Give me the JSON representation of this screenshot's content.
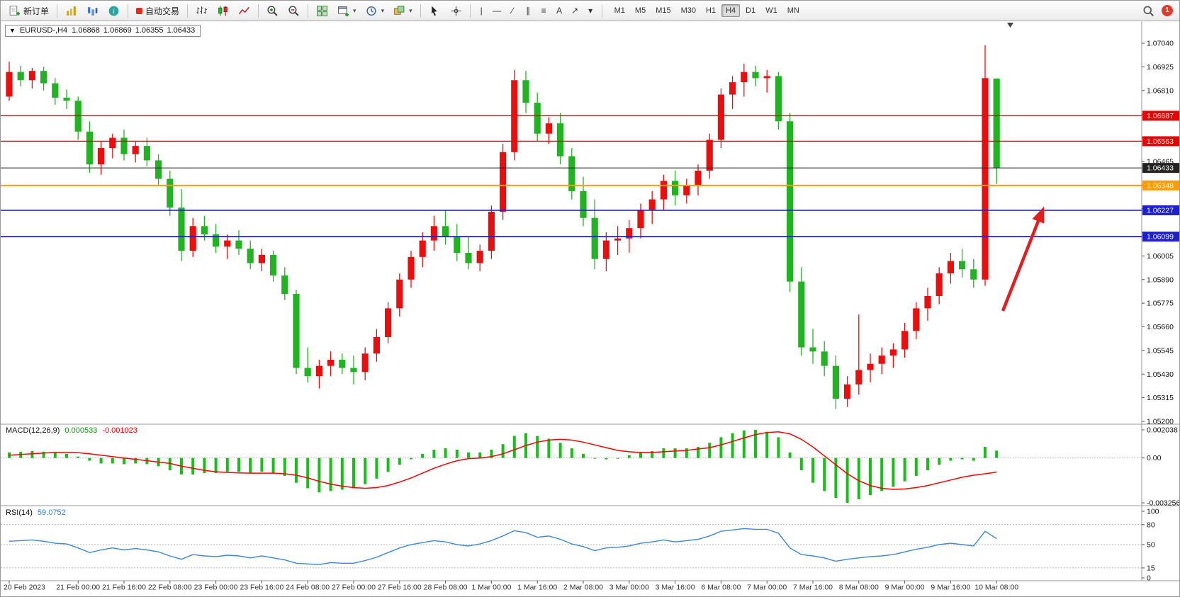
{
  "toolbar": {
    "new_order": "新订单",
    "auto_trading": "自动交易",
    "notification_count": "1",
    "icon_names": [
      "new-order-icon",
      "market-watch-icon",
      "navigator-icon",
      "terminal-icon",
      "auto-trading-icon",
      "bar-chart-icon",
      "candlestick-chart-icon",
      "line-chart-icon",
      "zoom-in-icon",
      "zoom-out-icon",
      "tile-windows-icon",
      "new-chart-icon",
      "periods-icon",
      "templates-icon",
      "cursor-icon",
      "crosshair-icon",
      "search-icon"
    ],
    "drawing_tools": [
      {
        "name": "vertical-line",
        "glyph": "|"
      },
      {
        "name": "horizontal-line",
        "glyph": "―"
      },
      {
        "name": "trendline",
        "glyph": "∕"
      },
      {
        "name": "equidistant-channel",
        "glyph": "∥"
      },
      {
        "name": "fibonacci-retracement",
        "glyph": "≡"
      },
      {
        "name": "text-label",
        "glyph": "A"
      },
      {
        "name": "arrow-tool",
        "glyph": "↗"
      },
      {
        "name": "shapes-dropdown",
        "glyph": "▾"
      }
    ],
    "timeframes": [
      {
        "label": "M1",
        "active": false
      },
      {
        "label": "M5",
        "active": false
      },
      {
        "label": "M15",
        "active": false
      },
      {
        "label": "M30",
        "active": false
      },
      {
        "label": "H1",
        "active": false
      },
      {
        "label": "H4",
        "active": true
      },
      {
        "label": "D1",
        "active": false
      },
      {
        "label": "W1",
        "active": false
      },
      {
        "label": "MN",
        "active": false
      }
    ]
  },
  "chart": {
    "one_click_arrow": "▼",
    "symbol_period": "EURUSD-,H4",
    "ohlc": {
      "open": "1.06868",
      "high": "1.06869",
      "low": "1.06355",
      "close": "1.06433"
    }
  },
  "indicators": {
    "macd": {
      "name": "MACD(12,26,9)",
      "main": "0.000533",
      "signal": "-0.001023",
      "scale": [
        "0.002038",
        "0.00",
        "-0.003256"
      ]
    },
    "rsi": {
      "name": "RSI(14)",
      "value": "59.0752",
      "scale": [
        "100",
        "80",
        "50",
        "15",
        "0"
      ]
    }
  },
  "annotations": {
    "arrow_color": "#e02020"
  },
  "chart_data": {
    "type": "candlestick",
    "symbol": "EURUSD-",
    "timeframe": "H4",
    "colors": {
      "bull": "#ea0f0f",
      "bear": "#22b322",
      "macd_hist": "#19bf19",
      "macd_signal": "#ff0000",
      "rsi": "#3a87e0"
    },
    "price_axis": {
      "max": 1.0704,
      "min": 1.052,
      "step": 0.00115,
      "labels": [
        "1.07040",
        "1.06925",
        "1.06810",
        "1.06695",
        "1.06580",
        "1.06465",
        "1.06350",
        "1.06235",
        "1.06120",
        "1.06005",
        "1.05890",
        "1.05775",
        "1.05660",
        "1.05545",
        "1.05430",
        "1.05315",
        "1.05200"
      ]
    },
    "levels": [
      {
        "price": 1.06687,
        "tag": "1.06687",
        "color": "#ee0000",
        "line_width": 1.3
      },
      {
        "price": 1.06563,
        "tag": "1.06563",
        "color": "#ee0000",
        "line_width": 1.3
      },
      {
        "price": 1.06433,
        "tag": "1.06433",
        "color": "#222222",
        "line_width": 1
      },
      {
        "price": 1.06348,
        "tag": "1.06348",
        "color": "#ff9d00",
        "line_width": 2
      },
      {
        "price": 1.06227,
        "tag": "1.06227",
        "color": "#1f1fd0",
        "line_width": 1.7
      },
      {
        "price": 1.06099,
        "tag": "1.06099",
        "color": "#1f1fd0",
        "line_width": 1.7
      }
    ],
    "time_labels": [
      {
        "i": 0,
        "t": "20 Feb 2023"
      },
      {
        "i": 6,
        "t": "21 Feb 00:00"
      },
      {
        "i": 10,
        "t": "21 Feb 16:00"
      },
      {
        "i": 14,
        "t": "22 Feb 08:00"
      },
      {
        "i": 18,
        "t": "23 Feb 00:00"
      },
      {
        "i": 22,
        "t": "23 Feb 16:00"
      },
      {
        "i": 26,
        "t": "24 Feb 08:00"
      },
      {
        "i": 30,
        "t": "27 Feb 00:00"
      },
      {
        "i": 34,
        "t": "27 Feb 16:00"
      },
      {
        "i": 38,
        "t": "28 Feb 08:00"
      },
      {
        "i": 42,
        "t": "1 Mar 00:00"
      },
      {
        "i": 46,
        "t": "1 Mar 16:00"
      },
      {
        "i": 50,
        "t": "2 Mar 08:00"
      },
      {
        "i": 54,
        "t": "3 Mar 00:00"
      },
      {
        "i": 58,
        "t": "3 Mar 16:00"
      },
      {
        "i": 62,
        "t": "6 Mar 08:00"
      },
      {
        "i": 66,
        "t": "7 Mar 00:00"
      },
      {
        "i": 70,
        "t": "7 Mar 16:00"
      },
      {
        "i": 74,
        "t": "8 Mar 08:00"
      },
      {
        "i": 78,
        "t": "9 Mar 00:00"
      },
      {
        "i": 82,
        "t": "9 Mar 16:00"
      },
      {
        "i": 86,
        "t": "10 Mar 08:00"
      }
    ],
    "candles": [
      [
        1.0678,
        1.0695,
        1.0676,
        1.069
      ],
      [
        1.069,
        1.0693,
        1.0683,
        1.0686
      ],
      [
        1.0686,
        1.0692,
        1.0682,
        1.06905
      ],
      [
        1.06905,
        1.06925,
        1.0681,
        1.06845
      ],
      [
        1.06845,
        1.0687,
        1.0674,
        1.06775
      ],
      [
        1.06775,
        1.06815,
        1.0672,
        1.0676
      ],
      [
        1.0676,
        1.0678,
        1.0657,
        1.0661
      ],
      [
        1.0661,
        1.0666,
        1.0641,
        1.0645
      ],
      [
        1.0645,
        1.0656,
        1.064,
        1.0653
      ],
      [
        1.0653,
        1.066,
        1.0648,
        1.0658
      ],
      [
        1.0658,
        1.0662,
        1.0647,
        1.065
      ],
      [
        1.065,
        1.0656,
        1.0646,
        1.0654
      ],
      [
        1.0654,
        1.0658,
        1.0644,
        1.0647
      ],
      [
        1.0647,
        1.065,
        1.0635,
        1.0638
      ],
      [
        1.0638,
        1.0642,
        1.062,
        1.0624
      ],
      [
        1.0624,
        1.0633,
        1.0598,
        1.0603
      ],
      [
        1.0603,
        1.0619,
        1.06,
        1.0615
      ],
      [
        1.0615,
        1.062,
        1.0608,
        1.0611
      ],
      [
        1.0611,
        1.0616,
        1.0602,
        1.0605
      ],
      [
        1.0605,
        1.0611,
        1.0599,
        1.0608
      ],
      [
        1.0608,
        1.0613,
        1.0601,
        1.0604
      ],
      [
        1.0604,
        1.0608,
        1.0594,
        1.0597
      ],
      [
        1.0597,
        1.0604,
        1.0593,
        1.0601
      ],
      [
        1.0601,
        1.0603,
        1.0588,
        1.0591
      ],
      [
        1.0591,
        1.0595,
        1.0579,
        1.0582
      ],
      [
        1.0582,
        1.0584,
        1.0543,
        1.0546
      ],
      [
        1.0546,
        1.0556,
        1.0539,
        1.0542
      ],
      [
        1.0542,
        1.055,
        1.0536,
        1.0547
      ],
      [
        1.0547,
        1.0554,
        1.0542,
        1.055
      ],
      [
        1.055,
        1.0553,
        1.0543,
        1.0546
      ],
      [
        1.0546,
        1.0552,
        1.0538,
        1.0544
      ],
      [
        1.0544,
        1.0556,
        1.054,
        1.0553
      ],
      [
        1.0553,
        1.0565,
        1.0549,
        1.0561
      ],
      [
        1.0561,
        1.0578,
        1.0558,
        1.0575
      ],
      [
        1.0575,
        1.0592,
        1.0571,
        1.0589
      ],
      [
        1.0589,
        1.0603,
        1.0585,
        1.06
      ],
      [
        1.06,
        1.0612,
        1.0595,
        1.0608
      ],
      [
        1.0608,
        1.062,
        1.0603,
        1.0615
      ],
      [
        1.0615,
        1.0623,
        1.0606,
        1.061
      ],
      [
        1.061,
        1.0616,
        1.0598,
        1.0602
      ],
      [
        1.0602,
        1.061,
        1.0594,
        1.0597
      ],
      [
        1.0597,
        1.0606,
        1.0593,
        1.0603
      ],
      [
        1.0603,
        1.0625,
        1.0599,
        1.0622
      ],
      [
        1.0622,
        1.0655,
        1.0618,
        1.0651
      ],
      [
        1.0651,
        1.0691,
        1.0647,
        1.0686
      ],
      [
        1.0686,
        1.06905,
        1.067,
        1.0675
      ],
      [
        1.0675,
        1.068,
        1.0656,
        1.066
      ],
      [
        1.066,
        1.0668,
        1.0655,
        1.0665
      ],
      [
        1.0665,
        1.067,
        1.0645,
        1.0649
      ],
      [
        1.0649,
        1.0653,
        1.0628,
        1.0632
      ],
      [
        1.0632,
        1.0639,
        1.0615,
        1.0619
      ],
      [
        1.0619,
        1.0628,
        1.0594,
        1.0599
      ],
      [
        1.0599,
        1.0612,
        1.0593,
        1.0608
      ],
      [
        1.0608,
        1.0615,
        1.0601,
        1.0609
      ],
      [
        1.0609,
        1.0618,
        1.0602,
        1.0614
      ],
      [
        1.0614,
        1.0626,
        1.0609,
        1.0623
      ],
      [
        1.0623,
        1.0632,
        1.0616,
        1.0628
      ],
      [
        1.0628,
        1.064,
        1.0623,
        1.0637
      ],
      [
        1.0637,
        1.0642,
        1.0625,
        1.063
      ],
      [
        1.063,
        1.0638,
        1.0626,
        1.0635
      ],
      [
        1.0635,
        1.0645,
        1.063,
        1.0642
      ],
      [
        1.0642,
        1.066,
        1.0638,
        1.0657
      ],
      [
        1.0657,
        1.0682,
        1.0653,
        1.0679
      ],
      [
        1.0679,
        1.0688,
        1.0672,
        1.0685
      ],
      [
        1.0685,
        1.0694,
        1.0678,
        1.069
      ],
      [
        1.069,
        1.0693,
        1.0683,
        1.0687
      ],
      [
        1.0687,
        1.0691,
        1.068,
        1.0688
      ],
      [
        1.0688,
        1.069,
        1.0662,
        1.0666
      ],
      [
        1.0666,
        1.067,
        1.0583,
        1.0588
      ],
      [
        1.0588,
        1.0595,
        1.0552,
        1.0556
      ],
      [
        1.0556,
        1.0565,
        1.0548,
        1.0554
      ],
      [
        1.0554,
        1.0559,
        1.0542,
        1.0547
      ],
      [
        1.0547,
        1.0552,
        1.0526,
        1.0531
      ],
      [
        1.0531,
        1.0542,
        1.0527,
        1.0538
      ],
      [
        1.0538,
        1.0572,
        1.0533,
        1.0545
      ],
      [
        1.0545,
        1.0553,
        1.0539,
        1.0548
      ],
      [
        1.0548,
        1.0556,
        1.0543,
        1.0552
      ],
      [
        1.0552,
        1.0558,
        1.0546,
        1.0555
      ],
      [
        1.0555,
        1.0568,
        1.0551,
        1.0564
      ],
      [
        1.0564,
        1.0578,
        1.056,
        1.0575
      ],
      [
        1.0575,
        1.0585,
        1.0569,
        1.0581
      ],
      [
        1.0581,
        1.0595,
        1.0577,
        1.0592
      ],
      [
        1.0592,
        1.0602,
        1.0587,
        1.0598
      ],
      [
        1.0598,
        1.0604,
        1.059,
        1.0594
      ],
      [
        1.0594,
        1.0599,
        1.0585,
        1.0589
      ],
      [
        1.0589,
        1.0703,
        1.0586,
        1.0687
      ],
      [
        1.06868,
        1.06869,
        1.06355,
        1.06433
      ]
    ],
    "macd": {
      "max": 0.002038,
      "min": -0.003256,
      "histogram": [
        0.0004,
        0.00045,
        0.0005,
        0.00045,
        0.0004,
        0.0003,
        0.0001,
        -0.0002,
        -0.0004,
        -0.0004,
        -0.00045,
        -0.0004,
        -0.00045,
        -0.0006,
        -0.0009,
        -0.0012,
        -0.0012,
        -0.0011,
        -0.0011,
        -0.001,
        -0.001,
        -0.0011,
        -0.001,
        -0.0011,
        -0.0013,
        -0.0018,
        -0.0022,
        -0.0025,
        -0.0024,
        -0.0023,
        -0.0022,
        -0.0019,
        -0.0015,
        -0.001,
        -0.0005,
        -0.0001,
        0.0003,
        0.0006,
        0.0007,
        0.0006,
        0.0004,
        0.0004,
        0.0006,
        0.001,
        0.0016,
        0.0018,
        0.0016,
        0.0014,
        0.0011,
        0.0007,
        0.0003,
        0.0,
        -0.0001,
        0.0,
        0.0002,
        0.0004,
        0.0005,
        0.0007,
        0.0007,
        0.0007,
        0.0008,
        0.0011,
        0.0015,
        0.0018,
        0.002,
        0.002038,
        0.0019,
        0.0015,
        0.0004,
        -0.0009,
        -0.0018,
        -0.0024,
        -0.0029,
        -0.003256,
        -0.003,
        -0.0027,
        -0.0024,
        -0.0021,
        -0.0017,
        -0.0013,
        -0.0009,
        -0.0005,
        -0.0002,
        -0.0001,
        -0.0002,
        0.0008,
        0.000533
      ],
      "signal": [
        0.0002,
        0.00025,
        0.0003,
        0.00035,
        0.0004,
        0.0004,
        0.00038,
        0.0003,
        0.0002,
        0.0001,
        0.0,
        -0.0001,
        -0.0002,
        -0.0003,
        -0.0004,
        -0.0006,
        -0.00075,
        -0.0009,
        -0.001,
        -0.00105,
        -0.00108,
        -0.0011,
        -0.0011,
        -0.0011,
        -0.00115,
        -0.00125,
        -0.00145,
        -0.0017,
        -0.0019,
        -0.00205,
        -0.00215,
        -0.0022,
        -0.00215,
        -0.002,
        -0.00175,
        -0.00145,
        -0.0011,
        -0.00075,
        -0.00045,
        -0.0002,
        -5e-05,
        0.0,
        0.0001,
        0.0003,
        0.0006,
        0.0009,
        0.00115,
        0.0013,
        0.00135,
        0.0013,
        0.00115,
        0.00095,
        0.00075,
        0.00055,
        0.00045,
        0.0004,
        0.0004,
        0.00045,
        0.0005,
        0.00055,
        0.00065,
        0.00075,
        0.00095,
        0.0012,
        0.00145,
        0.0017,
        0.00185,
        0.0019,
        0.00175,
        0.00135,
        0.0008,
        0.00015,
        -0.0005,
        -0.00115,
        -0.00165,
        -0.002,
        -0.0022,
        -0.00228,
        -0.00225,
        -0.00215,
        -0.002,
        -0.0018,
        -0.0016,
        -0.0014,
        -0.00125,
        -0.00115,
        -0.001023
      ]
    },
    "rsi": {
      "max": 100,
      "min": 0,
      "levels_dashed": [
        80,
        50,
        15
      ],
      "values": [
        55,
        56,
        57,
        55,
        52,
        51,
        45,
        38,
        42,
        45,
        42,
        44,
        42,
        39,
        33,
        28,
        35,
        33,
        32,
        34,
        33,
        30,
        33,
        30,
        27,
        22,
        21,
        20,
        23,
        22,
        22,
        26,
        31,
        38,
        45,
        50,
        53,
        56,
        54,
        50,
        48,
        51,
        56,
        63,
        71,
        68,
        61,
        63,
        58,
        51,
        47,
        41,
        45,
        46,
        48,
        52,
        54,
        57,
        54,
        56,
        58,
        63,
        70,
        72,
        74,
        73,
        73,
        67,
        45,
        35,
        33,
        30,
        25,
        28,
        30,
        32,
        33,
        35,
        39,
        43,
        46,
        50,
        52,
        50,
        48,
        70,
        59.0752
      ]
    }
  }
}
